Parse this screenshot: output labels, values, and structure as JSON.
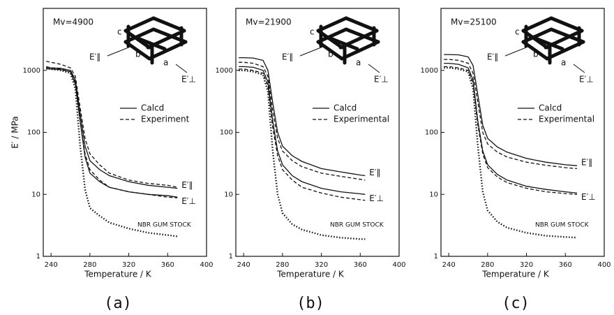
{
  "chart_data": [
    {
      "type": "line",
      "mv_label": "Mv=4900",
      "y_label": "E′ / MPa",
      "x_label": "Temperature / K",
      "panel_label": "(a)",
      "log_y": true,
      "xlim": [
        232,
        400
      ],
      "ylim": [
        1,
        10000
      ],
      "xticks": [
        240,
        280,
        320,
        360,
        400
      ],
      "yticks": [
        1,
        10,
        100,
        1000
      ],
      "legend": [
        {
          "label": "Calcd",
          "style": "solid"
        },
        {
          "label": "Experiment",
          "style": "dashed"
        }
      ],
      "diagram_labels": {
        "a": "a",
        "b": "b",
        "c": "c",
        "par": "E′∥",
        "perp": "E′⊥"
      },
      "annotation": "NBR GUM STOCK",
      "x": [
        235,
        240,
        250,
        260,
        265,
        270,
        275,
        280,
        290,
        300,
        320,
        340,
        360,
        370
      ],
      "series": [
        {
          "style": "solid",
          "end_label": "E′∥",
          "values": [
            1100,
            1100,
            1080,
            1000,
            700,
            200,
            60,
            35,
            25,
            20,
            16,
            14,
            13,
            12.5
          ]
        },
        {
          "style": "solid",
          "end_label": "E′⊥",
          "values": [
            1050,
            1050,
            1030,
            950,
            600,
            150,
            40,
            22,
            16,
            13,
            11,
            10,
            9.5,
            9
          ]
        },
        {
          "style": "dashed",
          "values": [
            1400,
            1350,
            1250,
            1100,
            800,
            250,
            80,
            45,
            30,
            22,
            17,
            15,
            14,
            13
          ]
        },
        {
          "style": "dashed",
          "values": [
            1150,
            1100,
            1050,
            950,
            650,
            150,
            45,
            25,
            17,
            13,
            11,
            10,
            9,
            8.8
          ]
        },
        {
          "style": "dotted",
          "values": [
            1100,
            1050,
            1000,
            900,
            500,
            60,
            12,
            6,
            4.5,
            3.5,
            2.8,
            2.4,
            2.2,
            2.1
          ]
        }
      ]
    },
    {
      "type": "line",
      "mv_label": "Mv=21900",
      "x_label": "Temperature / K",
      "panel_label": "(b)",
      "log_y": true,
      "xlim": [
        232,
        400
      ],
      "ylim": [
        1,
        10000
      ],
      "xticks": [
        240,
        280,
        320,
        360,
        400
      ],
      "yticks": [
        1,
        10,
        100,
        1000
      ],
      "legend": [
        {
          "label": "Calcd",
          "style": "solid"
        },
        {
          "label": "Experimental",
          "style": "dashed"
        }
      ],
      "diagram_labels": {
        "a": "a",
        "b": "b",
        "c": "c",
        "par": "E′∥",
        "perp": "E′⊥"
      },
      "annotation": "NBR GUM STOCK",
      "x": [
        235,
        240,
        250,
        260,
        265,
        270,
        275,
        280,
        290,
        300,
        320,
        340,
        360,
        365
      ],
      "series": [
        {
          "style": "solid",
          "end_label": "E′∥",
          "values": [
            1600,
            1600,
            1580,
            1450,
            1000,
            300,
            100,
            60,
            42,
            34,
            26,
            23,
            20.5,
            20
          ]
        },
        {
          "style": "solid",
          "end_label": "E′⊥",
          "values": [
            1150,
            1150,
            1120,
            1000,
            650,
            150,
            50,
            30,
            20,
            16,
            12.5,
            11,
            10.2,
            10
          ]
        },
        {
          "style": "dashed",
          "values": [
            1350,
            1350,
            1300,
            1150,
            800,
            220,
            80,
            50,
            35,
            28,
            22,
            19.5,
            17.5,
            17
          ]
        },
        {
          "style": "dashed",
          "values": [
            1050,
            1050,
            1000,
            900,
            560,
            120,
            42,
            25,
            17,
            13,
            10.5,
            9,
            8.2,
            8
          ]
        },
        {
          "style": "dotted",
          "values": [
            1000,
            1000,
            950,
            850,
            450,
            50,
            10,
            5,
            3.3,
            2.7,
            2.2,
            2.0,
            1.9,
            1.9
          ]
        }
      ]
    },
    {
      "type": "line",
      "mv_label": "Mv=25100",
      "x_label": "Temperature / K",
      "panel_label": "(c)",
      "log_y": true,
      "xlim": [
        232,
        400
      ],
      "ylim": [
        1,
        10000
      ],
      "xticks": [
        240,
        280,
        320,
        360,
        400
      ],
      "yticks": [
        1,
        10,
        100,
        1000
      ],
      "legend": [
        {
          "label": "Calcd",
          "style": "solid"
        },
        {
          "label": "Experimental",
          "style": "dashed"
        }
      ],
      "diagram_labels": {
        "a": "a",
        "b": "b",
        "c": "c",
        "par": "E′∥",
        "perp": "E′⊥"
      },
      "annotation": "NBR GUM STOCK",
      "x": [
        235,
        240,
        250,
        260,
        265,
        270,
        275,
        280,
        290,
        300,
        320,
        340,
        360,
        372
      ],
      "series": [
        {
          "style": "solid",
          "end_label": "E′∥",
          "values": [
            1800,
            1800,
            1780,
            1650,
            1200,
            400,
            130,
            80,
            58,
            48,
            38,
            33,
            30,
            29
          ]
        },
        {
          "style": "solid",
          "end_label": "E′⊥",
          "values": [
            1300,
            1300,
            1250,
            1100,
            700,
            150,
            50,
            30,
            21,
            17,
            13.5,
            12,
            11,
            10.5
          ]
        },
        {
          "style": "dashed",
          "values": [
            1500,
            1500,
            1450,
            1300,
            900,
            300,
            100,
            65,
            48,
            40,
            33,
            29.5,
            27,
            26
          ]
        },
        {
          "style": "dashed",
          "values": [
            1150,
            1150,
            1100,
            1000,
            620,
            130,
            45,
            27,
            19,
            15.5,
            12.5,
            11,
            10.3,
            10
          ]
        },
        {
          "style": "dotted",
          "values": [
            1100,
            1100,
            1050,
            950,
            500,
            60,
            11,
            5.5,
            3.6,
            2.9,
            2.4,
            2.15,
            2.05,
            2.0
          ]
        }
      ]
    }
  ]
}
